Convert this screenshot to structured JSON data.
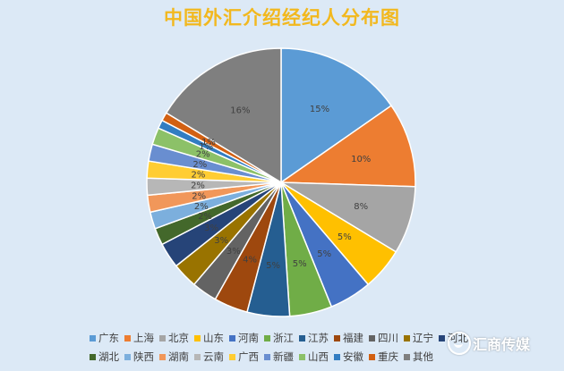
{
  "chart_data": {
    "type": "pie",
    "title": "中国外汇介绍经纪人分布图",
    "categories": [
      "广东",
      "上海",
      "北京",
      "山东",
      "河南",
      "浙江",
      "江苏",
      "福建",
      "四川",
      "辽宁",
      "河北",
      "湖北",
      "陕西",
      "湖南",
      "云南",
      "广西",
      "新疆",
      "山西",
      "安徽",
      "重庆",
      "其他"
    ],
    "values": [
      15,
      10,
      8,
      5,
      5,
      5,
      5,
      4,
      3,
      3,
      3,
      2,
      2,
      2,
      2,
      2,
      2,
      2,
      1,
      1,
      16
    ],
    "labels": [
      "15%",
      "10%",
      "8%",
      "5%",
      "5%",
      "5%",
      "5%",
      "4%",
      "3%",
      "3%",
      "3%",
      "2%",
      "2%",
      "2%",
      "2%",
      "2%",
      "2%",
      "2%",
      "1%",
      "1%",
      "16%"
    ],
    "colors": [
      "#5b9bd5",
      "#ed7d31",
      "#a5a5a5",
      "#ffc000",
      "#4472c4",
      "#70ad47",
      "#255e91",
      "#9e480e",
      "#636363",
      "#997300",
      "#264478",
      "#43682b",
      "#7cafdd",
      "#f1975a",
      "#b7b7b7",
      "#ffcd33",
      "#698ed0",
      "#8cc168",
      "#327dc2",
      "#d26012",
      "#7f7f7f"
    ],
    "legend_position": "bottom"
  },
  "legend_rows": [
    [
      "广东",
      "上海",
      "北京",
      "山东",
      "河南",
      "浙江",
      "江苏",
      "福建",
      "四川",
      "辽宁",
      "河北"
    ],
    [
      "湖北",
      "陕西",
      "湖南",
      "云南",
      "广西",
      "新疆",
      "山西",
      "安徽",
      "重庆",
      "其他"
    ]
  ],
  "watermark": {
    "text": "汇商传媒"
  }
}
